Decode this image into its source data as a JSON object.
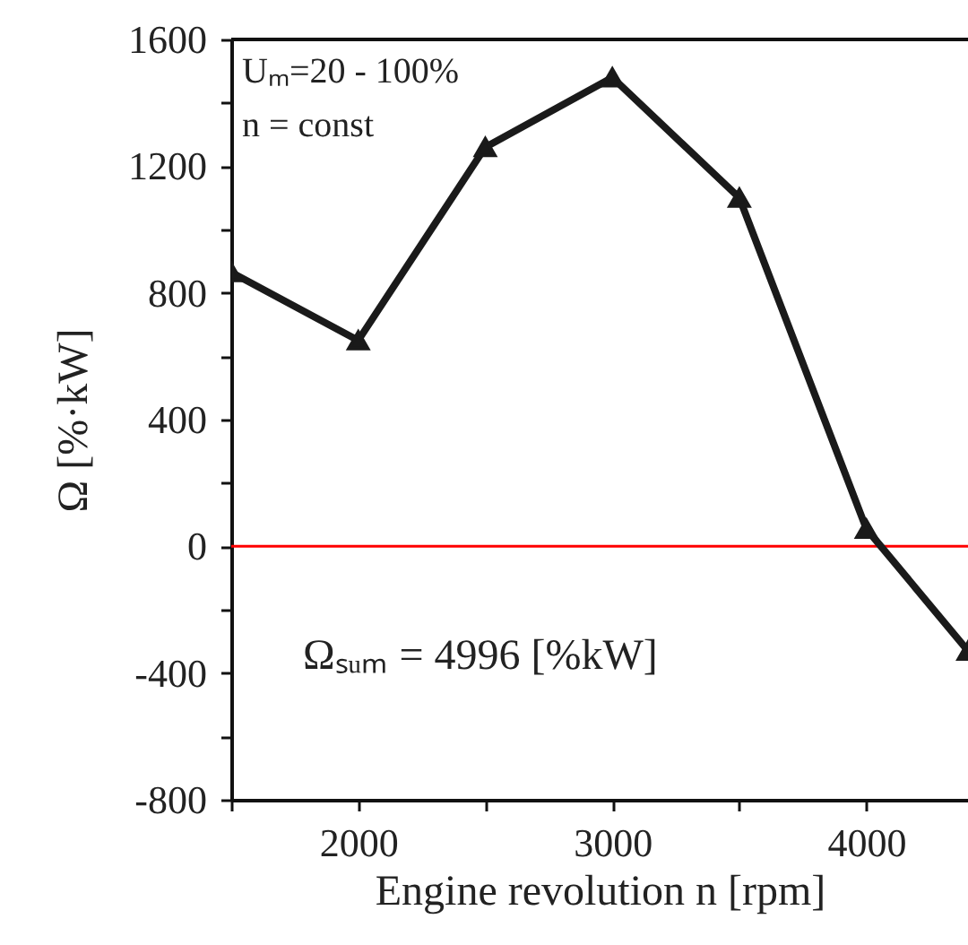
{
  "chart_data": {
    "type": "line",
    "xlabel": "Engine revolution  n  [rpm]",
    "ylabel": "Ω  [%·kW]",
    "x": [
      1500,
      2000,
      2500,
      3000,
      3500,
      4000,
      4400
    ],
    "series": [
      {
        "color": "#1a1a1a",
        "values": [
          865,
          650,
          1260,
          1480,
          1100,
          55,
          -330
        ]
      }
    ],
    "xlim": [
      1500,
      4400
    ],
    "xticks": [
      {
        "value": 1500,
        "label": null
      },
      2000,
      {
        "value": 2500,
        "label": null
      },
      3000,
      {
        "value": 3500,
        "label": null
      },
      4000
    ],
    "ylim": [
      -800,
      1600
    ],
    "yticks": [
      -800,
      {
        "value": -600,
        "label": null
      },
      -400,
      {
        "value": -200,
        "label": null
      },
      0,
      {
        "value": 200,
        "label": null
      },
      400,
      {
        "value": 600,
        "label": null
      },
      800,
      {
        "value": 1000,
        "label": null
      },
      1200,
      {
        "value": 1400,
        "label": null
      },
      1600
    ],
    "ref_lines": [
      {
        "axis": "y",
        "value": 0,
        "color": "#ff0000"
      }
    ],
    "annotations": [
      "Uₘ=20 - 100%",
      "n = const",
      "Ωₛᵤₘ = 4996 [%kW]"
    ],
    "marker": "triangle",
    "line_style": "solid",
    "grid": false
  }
}
